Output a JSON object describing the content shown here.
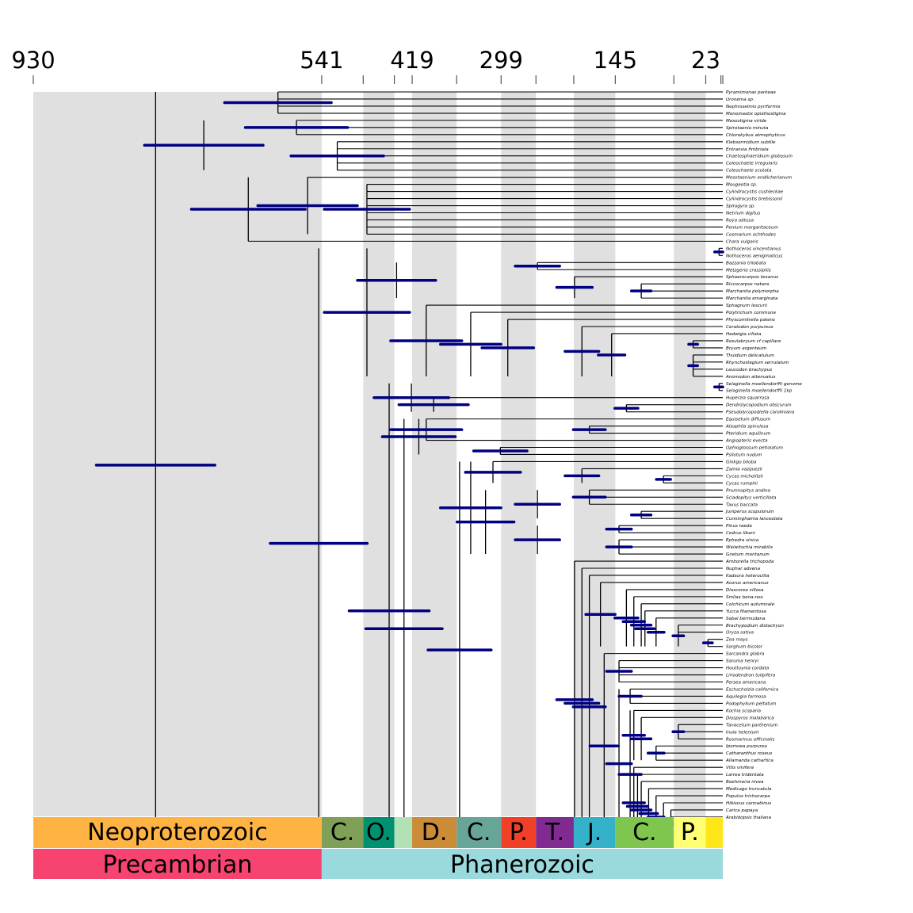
{
  "chart_data": {
    "type": "timetree",
    "axis_unit": "Ma",
    "axis_range": [
      930,
      0
    ],
    "axis_ticks": [
      {
        "age": 930,
        "label": "930"
      },
      {
        "age": 541,
        "label": "541"
      },
      {
        "age": 485,
        "label": ""
      },
      {
        "age": 443,
        "label": ""
      },
      {
        "age": 419,
        "label": "419"
      },
      {
        "age": 359,
        "label": ""
      },
      {
        "age": 299,
        "label": "299"
      },
      {
        "age": 252,
        "label": ""
      },
      {
        "age": 201,
        "label": ""
      },
      {
        "age": 145,
        "label": "145"
      },
      {
        "age": 66,
        "label": ""
      },
      {
        "age": 23,
        "label": "23"
      },
      {
        "age": 2.6,
        "label": ""
      },
      {
        "age": 0,
        "label": ""
      }
    ],
    "bands": [
      {
        "from": 930,
        "to": 541
      },
      {
        "from": 485,
        "to": 443
      },
      {
        "from": 419,
        "to": 359
      },
      {
        "from": 299,
        "to": 252
      },
      {
        "from": 201,
        "to": 145
      },
      {
        "from": 66,
        "to": 23
      }
    ],
    "periods": [
      {
        "label": "Neoproterozoic",
        "from": 930,
        "to": 541,
        "color": "#FEB342"
      },
      {
        "label": "C.",
        "from": 541,
        "to": 485,
        "color": "#7FA056"
      },
      {
        "label": "O.",
        "from": 485,
        "to": 443,
        "color": "#009270"
      },
      {
        "label": "",
        "from": 443,
        "to": 419,
        "color": "#B3E1B6"
      },
      {
        "label": "D.",
        "from": 419,
        "to": 359,
        "color": "#CB8C37"
      },
      {
        "label": "C.",
        "from": 359,
        "to": 299,
        "color": "#67A599"
      },
      {
        "label": "P.",
        "from": 299,
        "to": 252,
        "color": "#F04028"
      },
      {
        "label": "T.",
        "from": 252,
        "to": 201,
        "color": "#812B92"
      },
      {
        "label": "J.",
        "from": 201,
        "to": 145,
        "color": "#34B2C9"
      },
      {
        "label": "C.",
        "from": 145,
        "to": 66,
        "color": "#7FC64E"
      },
      {
        "label": "P.",
        "from": 66,
        "to": 23,
        "color": "#FFFF73"
      },
      {
        "label": "",
        "from": 23,
        "to": 0,
        "color": "#FFE619"
      }
    ],
    "eons": [
      {
        "label": "Precambrian",
        "from": 930,
        "to": 541,
        "color": "#F74370"
      },
      {
        "label": "Phanerozoic",
        "from": 541,
        "to": 0,
        "color": "#9AD9DD"
      }
    ],
    "colors": {
      "ci_bar": "#000080",
      "branch": "#000000",
      "band": "#e0e0e0"
    },
    "taxa": [
      "Pyramimonas parkeae",
      "Uronema sp.",
      "Nephroselmis pyriformis",
      "Monomastix opisthostigma",
      "Mesostigma viride",
      "Spirotaenia minuta",
      "Chlorokybus atmophyticus",
      "Klebsormidium subtile",
      "Entransia fimbriata",
      "Chaetosphaeridium globosum",
      "Coleochaete irregularis",
      "Coleochaete scutata",
      "Mesotaenium endlicherianum",
      "Mougeotia sp.",
      "Cylindrocystis cushleckae",
      "Cylindrocystis brebissonii",
      "Spirogyra sp.",
      "Netrium digitus",
      "Roya obtusa",
      "Penium margaritaceum",
      "Cosmarium ochthodes",
      "Chara vulgaris",
      "Nothoceros vincentianus",
      "Nothoceros aenigmaticus",
      "Bazzania trilobata",
      "Metzgeria crassipilis",
      "Sphaerocarpos texanus",
      "Riccocarpos natans",
      "Marchantia polymorpha",
      "Marchantia emarginata",
      "Sphagnum lescurii",
      "Polytrichum commune",
      "Physcomitrella patens",
      "Ceratodon purpureus",
      "Hedwigia ciliata",
      "Rosulabryum cf capillare",
      "Bryum argenteum",
      "Thuidium delicatulum",
      "Rhynchostegium serrulatum",
      "Leucodon brachypus",
      "Anomodon attenuatus",
      "Selaginella moellendorffii genome",
      "Selaginella moellendorffii 1kp",
      "Huperzia squarrosa",
      "Dendrolycopodium obscurum",
      "Pseudolycopodiella caroliniana",
      "Equisetum diffusum",
      "Alsophila spinulosa",
      "Pteridium aquilinum",
      "Angiopteris evecta",
      "Ophioglossum petiolatum",
      "Psilotum nudum",
      "Ginkgo biloba",
      "Zamia vazquezii",
      "Cycas micholitzii",
      "Cycas rumphii",
      "Prumnopitys andina",
      "Sciadopitys verticillata",
      "Taxus baccata",
      "Juniperus scopulorum",
      "Cunninghamia lanceolata",
      "Pinus taeda",
      "Cedrus libani",
      "Ephedra sinica",
      "Welwitschia mirabilis",
      "Gnetum montanum",
      "Amborella trichopoda",
      "Nuphar advena",
      "Kadsura heteroclita",
      "Acorus americanus",
      "Dioscorea villosa",
      "Smilax bona-nox",
      "Colchicum autumnale",
      "Yucca filamentosa",
      "Sabal bermudana",
      "Brachypodium distachyon",
      "Oryza sativa",
      "Zea mays",
      "Sorghum bicolor",
      "Sarcandra glabra",
      "Saruma henryi",
      "Houttuynia cordata",
      "Liriodendron tulipifera",
      "Persea americana",
      "Eschscholzia californica",
      "Aquilegia formosa",
      "Podophyllum peltatum",
      "Kochia scoparia",
      "Diospyros malabarica",
      "Tanacetum parthenium",
      "Inula helenium",
      "Rosmarinus officinalis",
      "Ipomoea purpurea",
      "Catharanthus roseus",
      "Allamanda cathartica",
      "Vitis vinifera",
      "Larrea tridentata",
      "Boehmeria nivea",
      "Medicago truncatula",
      "Populus trichocarpa",
      "Hibiscus cannabinus",
      "Carica papaya",
      "Arabidopsis thaliana"
    ]
  }
}
